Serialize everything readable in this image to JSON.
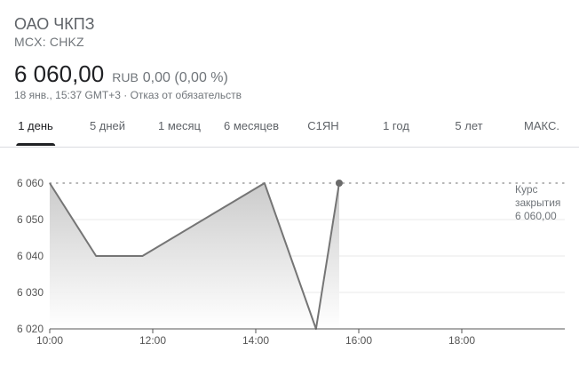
{
  "header": {
    "company_name": "ОАО ЧКПЗ",
    "ticker": "MCX: CHKZ",
    "price": "6 060,00",
    "currency": "RUB",
    "change": "0,00 (0,00 %)",
    "timestamp": "18 янв., 15:37 GMT+3",
    "separator": "·",
    "disclaimer": "Отказ от обязательств"
  },
  "tabs": [
    {
      "label": "1 день",
      "active": true
    },
    {
      "label": "5 дней",
      "active": false
    },
    {
      "label": "1 месяц",
      "active": false
    },
    {
      "label": "6 месяцев",
      "active": false
    },
    {
      "label": "С1ЯН",
      "active": false
    },
    {
      "label": "1 год",
      "active": false
    },
    {
      "label": "5 лет",
      "active": false
    },
    {
      "label": "МАКС.",
      "active": false
    }
  ],
  "close_label": {
    "line1": "Курс",
    "line2": "закрытия",
    "value": "6 060,00"
  },
  "colors": {
    "line": "#757575",
    "fill_top": "#c8c8c8",
    "grid": "#e8e8e8",
    "axis": "#555555",
    "text": "#202124",
    "secondary_text": "#70757a"
  },
  "chart_data": {
    "type": "area",
    "x_labels": [
      "10:00",
      "12:00",
      "14:00",
      "16:00",
      "18:00"
    ],
    "x_ticks": [
      10,
      12,
      14,
      16,
      18
    ],
    "y_labels": [
      "6 060",
      "6 050",
      "6 040",
      "6 030",
      "6 020"
    ],
    "y_ticks": [
      6060,
      6050,
      6040,
      6030,
      6020
    ],
    "xlim": [
      10,
      20
    ],
    "ylim": [
      6020,
      6060
    ],
    "points": [
      {
        "x": 10.0,
        "y": 6060
      },
      {
        "x": 10.9,
        "y": 6040
      },
      {
        "x": 11.8,
        "y": 6040
      },
      {
        "x": 14.17,
        "y": 6060
      },
      {
        "x": 15.17,
        "y": 6020
      },
      {
        "x": 15.62,
        "y": 6060
      }
    ],
    "previous_close": 6060,
    "grid": true
  }
}
